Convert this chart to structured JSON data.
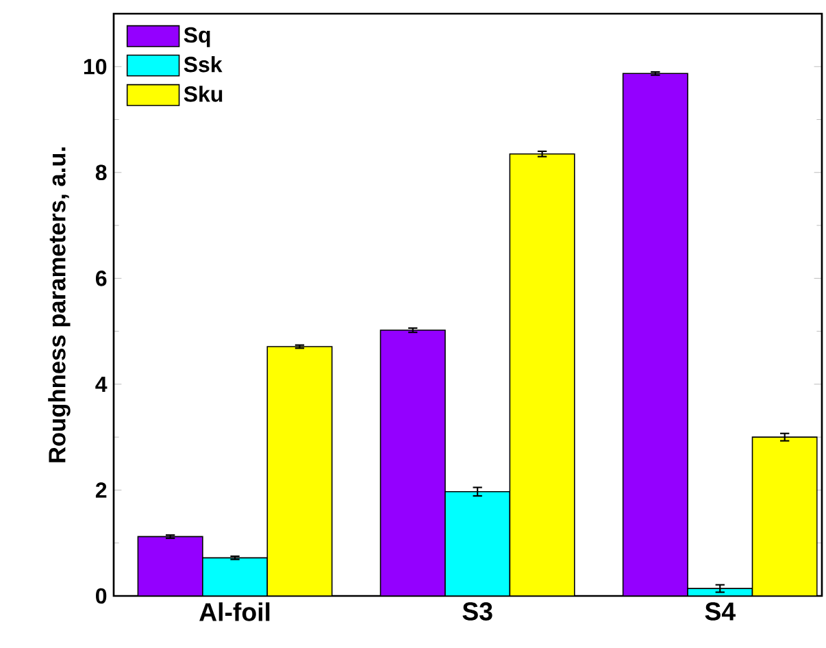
{
  "chart_data": {
    "type": "bar",
    "ylabel": "Roughness parameters, a.u.",
    "categories": [
      "Al-foil",
      "S3",
      "S4"
    ],
    "series": [
      {
        "name": "Sq",
        "color": "#9400ff",
        "values": [
          1.12,
          5.02,
          9.87
        ],
        "errors": [
          0.03,
          0.04,
          0.03
        ]
      },
      {
        "name": "Ssk",
        "color": "#00ffff",
        "values": [
          0.72,
          1.97,
          0.14
        ],
        "errors": [
          0.03,
          0.08,
          0.07
        ]
      },
      {
        "name": "Sku",
        "color": "#ffff00",
        "values": [
          4.71,
          8.35,
          3.0
        ],
        "errors": [
          0.03,
          0.05,
          0.07
        ]
      }
    ],
    "ylim": [
      0,
      11
    ],
    "yticks": [
      0,
      2,
      4,
      6,
      8,
      10
    ],
    "grid": false,
    "legend": "top left"
  }
}
